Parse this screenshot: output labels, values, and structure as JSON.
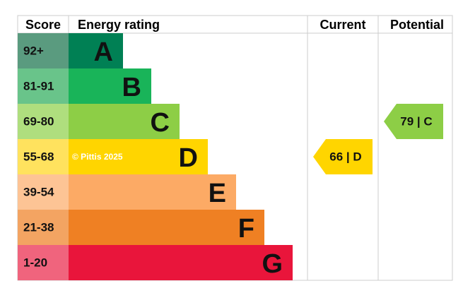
{
  "header": {
    "score": "Score",
    "rating": "Energy rating",
    "current": "Current",
    "potential": "Potential"
  },
  "rows": [
    {
      "score": "92+",
      "letter": "A",
      "color": "#008054",
      "score_color": "#5a9b7f"
    },
    {
      "score": "81-91",
      "letter": "B",
      "color": "#19b459",
      "score_color": "#69c48a"
    },
    {
      "score": "69-80",
      "letter": "C",
      "color": "#8dce46",
      "score_color": "#afde7e"
    },
    {
      "score": "55-68",
      "letter": "D",
      "color": "#ffd500",
      "score_color": "#ffe25e"
    },
    {
      "score": "39-54",
      "letter": "E",
      "color": "#fcaa65",
      "score_color": "#fdc495"
    },
    {
      "score": "21-38",
      "letter": "F",
      "color": "#ef8023",
      "score_color": "#f3a462"
    },
    {
      "score": "1-20",
      "letter": "G",
      "color": "#e9153b",
      "score_color": "#f0647d"
    }
  ],
  "watermark": "© Pittis 2025",
  "current": {
    "label": "66 | D",
    "row": 3
  },
  "potential": {
    "label": "79 | C",
    "row": 2
  }
}
